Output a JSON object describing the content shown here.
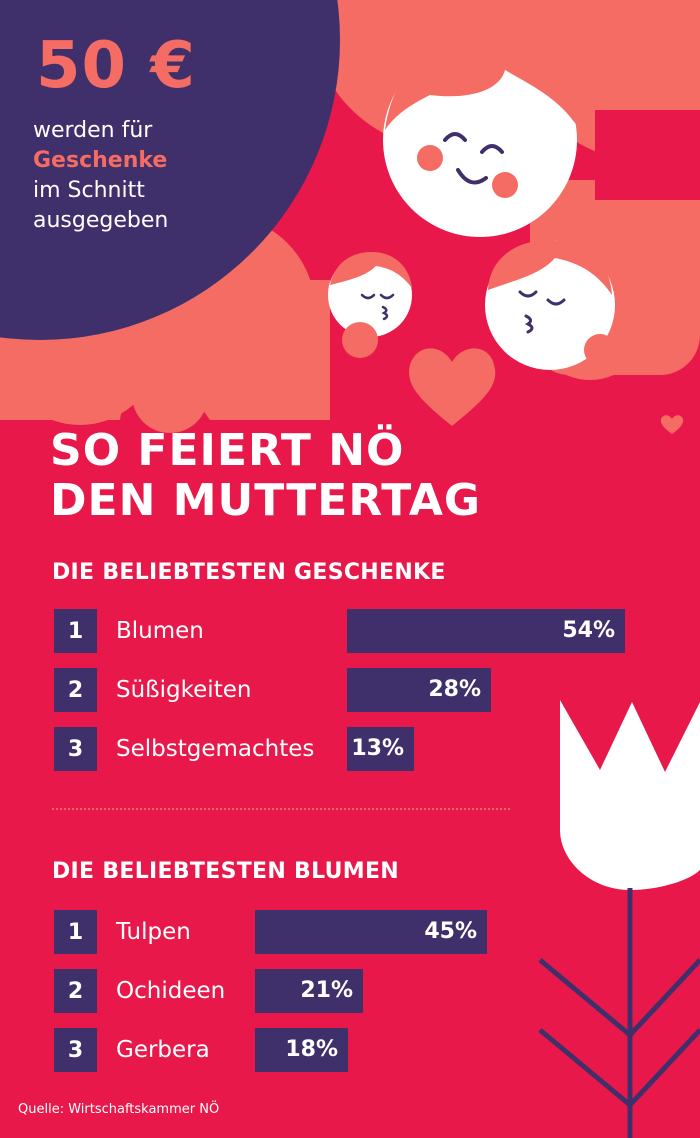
{
  "hero": {
    "amount": "50 €",
    "line1": "werden für",
    "line2": "Geschenke",
    "line3": "im Schnitt",
    "line4": "ausgegeben"
  },
  "title": {
    "line1": "SO FEIERT NÖ",
    "line2": "DEN MUTTERTAG"
  },
  "colors": {
    "background": "#e8194a",
    "coral": "#f46c63",
    "navy": "#3f2f6b",
    "white": "#ffffff"
  },
  "chart_data": [
    {
      "type": "bar",
      "title": "DIE BELIEBTESTEN GESCHENKE",
      "ranks": [
        "1",
        "2",
        "3"
      ],
      "categories": [
        "Blumen",
        "Süßigkeiten",
        "Selbstgemachtes"
      ],
      "values": [
        54,
        28,
        13
      ],
      "value_labels": [
        "54%",
        "28%",
        "13%"
      ],
      "unit": "%"
    },
    {
      "type": "bar",
      "title": "DIE BELIEBTESTEN BLUMEN",
      "ranks": [
        "1",
        "2",
        "3"
      ],
      "categories": [
        "Tulpen",
        "Ochideen",
        "Gerbera"
      ],
      "values": [
        45,
        21,
        18
      ],
      "value_labels": [
        "45%",
        "21%",
        "18%"
      ],
      "unit": "%"
    }
  ],
  "source": "Quelle: Wirtschaftskammer NÖ"
}
